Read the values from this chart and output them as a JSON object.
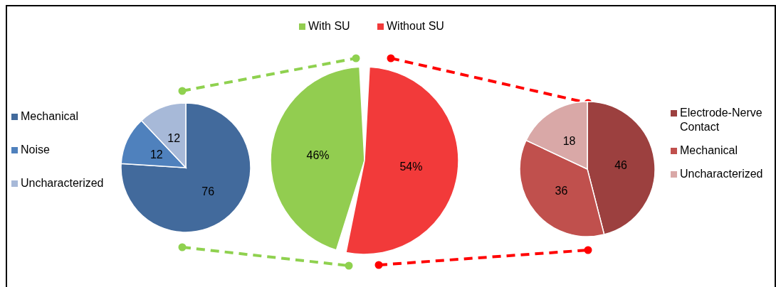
{
  "chart_data": [
    {
      "type": "pie",
      "categories": [
        "Mechanical",
        "Noise",
        "Uncharacterized"
      ],
      "values": [
        76,
        12,
        12
      ],
      "colors": [
        "#426a9c",
        "#4f81bd",
        "#a7b9d8"
      ],
      "data_labels": true,
      "legend": "left"
    },
    {
      "type": "pie",
      "categories": [
        "With SU",
        "Without SU"
      ],
      "values": [
        46,
        54
      ],
      "colors": [
        "#92cd50",
        "#f23a3a"
      ],
      "value_labels": [
        "46%",
        "54%"
      ],
      "legend": "top"
    },
    {
      "type": "pie",
      "categories": [
        "Electrode-Nerve Contact",
        "Mechanical",
        "Uncharacterized"
      ],
      "values": [
        46,
        36,
        18
      ],
      "colors": [
        "#9c403f",
        "#c0504d",
        "#d9a8a7"
      ],
      "data_labels": true,
      "legend": "right"
    }
  ]
}
